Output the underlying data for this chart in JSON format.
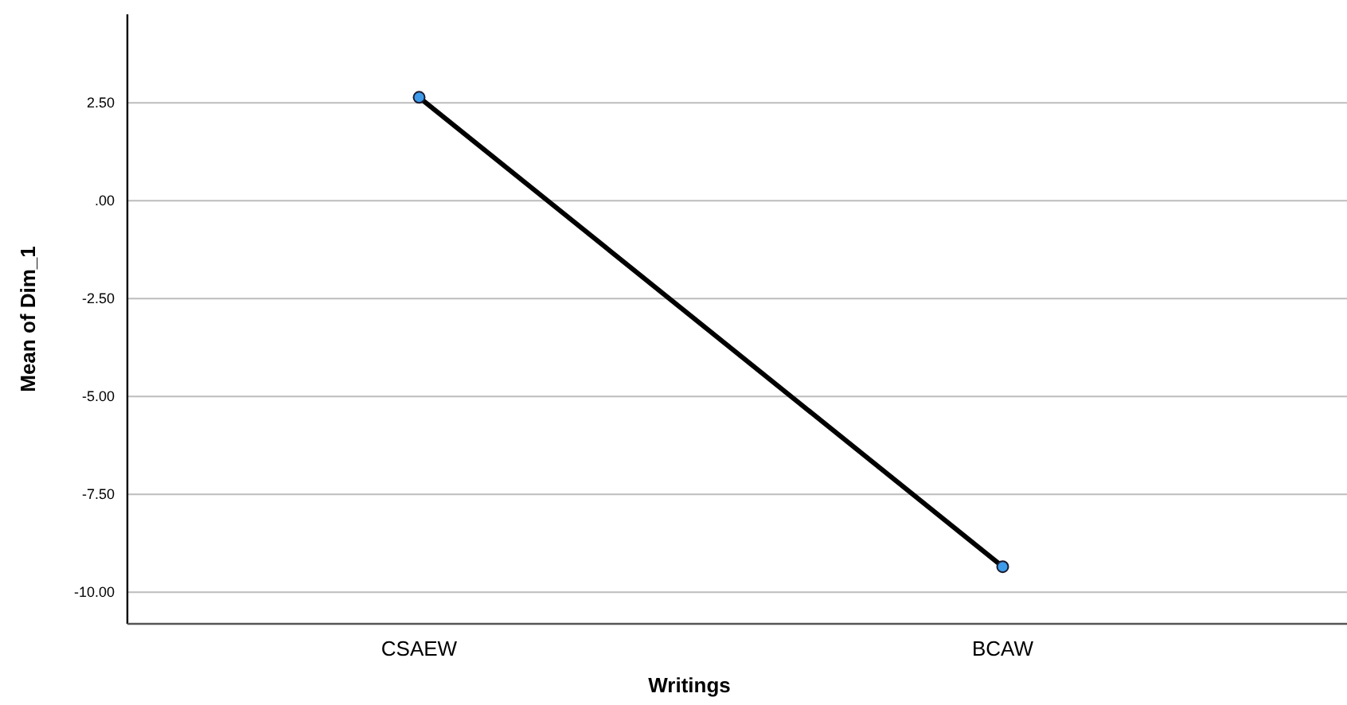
{
  "chart_data": {
    "type": "line",
    "xlabel": "Writings",
    "ylabel": "Mean of Dim_1",
    "categories": [
      "CSAEW",
      "BCAW"
    ],
    "series": [
      {
        "color": "#000000",
        "colors": [
          "#3d9be9",
          "#3d9be9"
        ],
        "values": [
          2.64,
          -9.35
        ]
      }
    ],
    "ylim": [
      -10.81,
      4.76
    ],
    "yticks": [
      {
        "value": -10,
        "label": "-10.00"
      },
      {
        "value": -7.5,
        "label": "-7.50"
      },
      {
        "value": -5,
        "label": "-5.00"
      },
      {
        "value": -2.5,
        "label": "-2.50"
      },
      {
        "value": 0,
        "label": ".00"
      },
      {
        "value": 2.5,
        "label": "2.50"
      }
    ],
    "grid": "y",
    "marker": "circle",
    "line_style": "solid"
  }
}
